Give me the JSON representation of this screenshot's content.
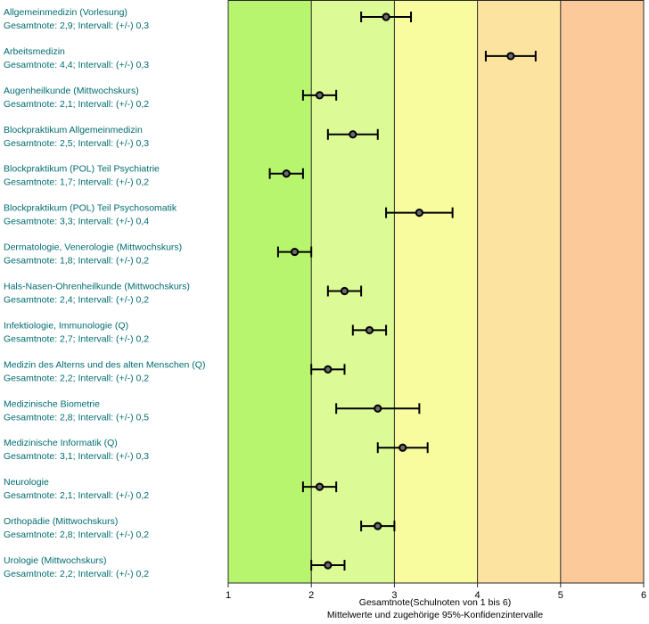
{
  "chart_data": {
    "type": "errorbar",
    "orientation": "horizontal",
    "xlabel": "Gesamtnote(Schulnoten von 1 bis 6)",
    "xlabel_sub": "Mittelwerte und zugehörige 95%-Konfidenzintervalle",
    "xlim": [
      1,
      6
    ],
    "xticks": [
      "1",
      "2",
      "3",
      "4",
      "5",
      "6"
    ],
    "grid": "vertical",
    "zones": [
      {
        "from": 1,
        "to": 2,
        "color": "#b8f56e"
      },
      {
        "from": 2,
        "to": 3,
        "color": "#dcfa96"
      },
      {
        "from": 3,
        "to": 4,
        "color": "#f8fb9e"
      },
      {
        "from": 4,
        "to": 5,
        "color": "#fce4a0"
      },
      {
        "from": 5,
        "to": 6,
        "color": "#fcc99a"
      }
    ],
    "items": [
      {
        "name": "Allgemeinmedizin (Vorlesung)",
        "detail": "Gesamtnote: 2,9;  Intervall: (+/-) 0,3",
        "mean": 2.9,
        "ci": 0.3
      },
      {
        "name": "Arbeitsmedizin",
        "detail": "Gesamtnote: 4,4;  Intervall: (+/-) 0,3",
        "mean": 4.4,
        "ci": 0.3
      },
      {
        "name": "Augenheilkunde (Mittwochskurs)",
        "detail": "Gesamtnote: 2,1;  Intervall: (+/-) 0,2",
        "mean": 2.1,
        "ci": 0.2
      },
      {
        "name": "Blockpraktikum Allgemeinmedizin",
        "detail": "Gesamtnote: 2,5;  Intervall: (+/-) 0,3",
        "mean": 2.5,
        "ci": 0.3
      },
      {
        "name": "Blockpraktikum (POL) Teil Psychiatrie",
        "detail": "Gesamtnote: 1,7;  Intervall: (+/-) 0,2",
        "mean": 1.7,
        "ci": 0.2
      },
      {
        "name": "Blockpraktikum (POL) Teil Psychosomatik",
        "detail": "Gesamtnote: 3,3;  Intervall: (+/-) 0,4",
        "mean": 3.3,
        "ci": 0.4
      },
      {
        "name": "Dermatologie, Venerologie (Mittwochskurs)",
        "detail": "Gesamtnote: 1,8;  Intervall: (+/-) 0,2",
        "mean": 1.8,
        "ci": 0.2
      },
      {
        "name": "Hals-Nasen-Ohrenheilkunde (Mittwochskurs)",
        "detail": "Gesamtnote: 2,4;  Intervall: (+/-) 0,2",
        "mean": 2.4,
        "ci": 0.2
      },
      {
        "name": "Infektiologie, Immunologie (Q)",
        "detail": "Gesamtnote: 2,7;  Intervall: (+/-) 0,2",
        "mean": 2.7,
        "ci": 0.2
      },
      {
        "name": "Medizin des Alterns und des alten Menschen (Q)",
        "detail": "Gesamtnote: 2,2;  Intervall: (+/-) 0,2",
        "mean": 2.2,
        "ci": 0.2
      },
      {
        "name": "Medizinische Biometrie",
        "detail": "Gesamtnote: 2,8;  Intervall: (+/-) 0,5",
        "mean": 2.8,
        "ci": 0.5
      },
      {
        "name": "Medizinische Informatik (Q)",
        "detail": "Gesamtnote: 3,1;  Intervall: (+/-) 0,3",
        "mean": 3.1,
        "ci": 0.3
      },
      {
        "name": "Neurologie",
        "detail": "Gesamtnote: 2,1;  Intervall: (+/-) 0,2",
        "mean": 2.1,
        "ci": 0.2
      },
      {
        "name": "Orthopädie (Mittwochskurs)",
        "detail": "Gesamtnote: 2,8;  Intervall: (+/-) 0,2",
        "mean": 2.8,
        "ci": 0.2
      },
      {
        "name": "Urologie (Mittwochskurs)",
        "detail": "Gesamtnote: 2,2;  Intervall: (+/-) 0,2",
        "mean": 2.2,
        "ci": 0.2
      }
    ]
  }
}
